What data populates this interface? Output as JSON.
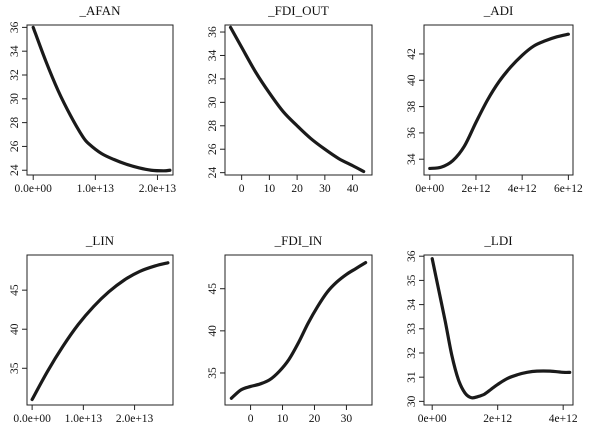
{
  "chart_data": [
    {
      "type": "line",
      "title": "_AFAN",
      "xlim": [
        -1000000000000.0,
        22500000000000.0
      ],
      "ylim": [
        23.6,
        36.2
      ],
      "xticks": [
        {
          "v": 0,
          "label": "0.0e+00"
        },
        {
          "v": 10000000000000.0,
          "label": "1.0e+13"
        },
        {
          "v": 20000000000000.0,
          "label": "2.0e+13"
        }
      ],
      "yticks": [
        {
          "v": 24,
          "label": "24"
        },
        {
          "v": 26,
          "label": "26"
        },
        {
          "v": 28,
          "label": "28"
        },
        {
          "v": 30,
          "label": "30"
        },
        {
          "v": 32,
          "label": "32"
        },
        {
          "v": 34,
          "label": "34"
        },
        {
          "v": 36,
          "label": "36"
        }
      ],
      "series": [
        {
          "x": [
            0,
            2000000000000.0,
            4000000000000.0,
            6000000000000.0,
            8000000000000.0,
            9000000000000.0,
            11000000000000.0,
            13000000000000.0,
            15000000000000.0,
            17000000000000.0,
            19000000000000.0,
            21000000000000.0,
            22000000000000.0
          ],
          "y": [
            36.0,
            33.2,
            30.7,
            28.6,
            26.8,
            26.2,
            25.4,
            24.9,
            24.5,
            24.2,
            24.0,
            23.95,
            24.0
          ]
        }
      ]
    },
    {
      "type": "line",
      "title": "_FDI_OUT",
      "xlim": [
        -6,
        47
      ],
      "ylim": [
        23.8,
        36.6
      ],
      "xticks": [
        {
          "v": 0,
          "label": "0"
        },
        {
          "v": 10,
          "label": "10"
        },
        {
          "v": 20,
          "label": "20"
        },
        {
          "v": 30,
          "label": "30"
        },
        {
          "v": 40,
          "label": "40"
        }
      ],
      "yticks": [
        {
          "v": 24,
          "label": "24"
        },
        {
          "v": 26,
          "label": "26"
        },
        {
          "v": 28,
          "label": "28"
        },
        {
          "v": 30,
          "label": "30"
        },
        {
          "v": 32,
          "label": "32"
        },
        {
          "v": 34,
          "label": "34"
        },
        {
          "v": 36,
          "label": "36"
        }
      ],
      "series": [
        {
          "x": [
            -4,
            0,
            5,
            10,
            15,
            20,
            25,
            30,
            35,
            40,
            44
          ],
          "y": [
            36.4,
            34.7,
            32.6,
            30.8,
            29.2,
            28.0,
            26.9,
            26.0,
            25.2,
            24.6,
            24.1
          ]
        }
      ]
    },
    {
      "type": "line",
      "title": "_ADI",
      "xlim": [
        -250000000000.0,
        6200000000000.0
      ],
      "ylim": [
        32.8,
        44.2
      ],
      "xticks": [
        {
          "v": 0,
          "label": "0e+00"
        },
        {
          "v": 2000000000000.0,
          "label": "2e+12"
        },
        {
          "v": 4000000000000.0,
          "label": "4e+12"
        },
        {
          "v": 6000000000000.0,
          "label": "6e+12"
        }
      ],
      "yticks": [
        {
          "v": 34,
          "label": "34"
        },
        {
          "v": 36,
          "label": "36"
        },
        {
          "v": 38,
          "label": "38"
        },
        {
          "v": 40,
          "label": "40"
        },
        {
          "v": 42,
          "label": "42"
        }
      ],
      "series": [
        {
          "x": [
            0,
            500000000000.0,
            1000000000000.0,
            1500000000000.0,
            2000000000000.0,
            2500000000000.0,
            3000000000000.0,
            3500000000000.0,
            4000000000000.0,
            4500000000000.0,
            5000000000000.0,
            5500000000000.0,
            6000000000000.0
          ],
          "y": [
            33.3,
            33.4,
            33.9,
            35.0,
            36.8,
            38.5,
            39.9,
            41.0,
            41.9,
            42.6,
            43.0,
            43.3,
            43.5
          ]
        }
      ]
    },
    {
      "type": "line",
      "title": "_LIN",
      "xlim": [
        -1000000000000.0,
        27500000000000.0
      ],
      "ylim": [
        30.3,
        49.5
      ],
      "xticks": [
        {
          "v": 0,
          "label": "0.0e+00"
        },
        {
          "v": 10000000000000.0,
          "label": "1.0e+13"
        },
        {
          "v": 20000000000000.0,
          "label": "2.0e+13"
        }
      ],
      "yticks": [
        {
          "v": 35,
          "label": "35"
        },
        {
          "v": 40,
          "label": "40"
        },
        {
          "v": 45,
          "label": "45"
        }
      ],
      "series": [
        {
          "x": [
            0,
            3000000000000.0,
            6000000000000.0,
            9000000000000.0,
            12000000000000.0,
            15000000000000.0,
            18000000000000.0,
            21000000000000.0,
            24000000000000.0,
            26500000000000.0
          ],
          "y": [
            31.0,
            34.6,
            37.8,
            40.6,
            42.9,
            44.8,
            46.3,
            47.4,
            48.1,
            48.5
          ]
        }
      ]
    },
    {
      "type": "line",
      "title": "_FDI_IN",
      "xlim": [
        -8,
        38
      ],
      "ylim": [
        31.2,
        49.0
      ],
      "xticks": [
        {
          "v": 0,
          "label": "0"
        },
        {
          "v": 10,
          "label": "10"
        },
        {
          "v": 20,
          "label": "20"
        },
        {
          "v": 30,
          "label": "30"
        }
      ],
      "yticks": [
        {
          "v": 35,
          "label": "35"
        },
        {
          "v": 40,
          "label": "40"
        },
        {
          "v": 45,
          "label": "45"
        }
      ],
      "series": [
        {
          "x": [
            -6,
            -3,
            0,
            3,
            6,
            9,
            12,
            15,
            18,
            21,
            24,
            27,
            30,
            33,
            36
          ],
          "y": [
            32.0,
            33.0,
            33.4,
            33.7,
            34.2,
            35.2,
            36.6,
            38.6,
            40.9,
            42.9,
            44.6,
            45.8,
            46.7,
            47.4,
            48.1
          ]
        }
      ]
    },
    {
      "type": "line",
      "title": "_LDI",
      "xlim": [
        -250000000000.0,
        4300000000000.0
      ],
      "ylim": [
        29.85,
        36.05
      ],
      "xticks": [
        {
          "v": 0,
          "label": "0e+00"
        },
        {
          "v": 2000000000000.0,
          "label": "2e+12"
        },
        {
          "v": 4000000000000.0,
          "label": "4e+12"
        }
      ],
      "yticks": [
        {
          "v": 30,
          "label": "30"
        },
        {
          "v": 31,
          "label": "31"
        },
        {
          "v": 32,
          "label": "32"
        },
        {
          "v": 33,
          "label": "33"
        },
        {
          "v": 34,
          "label": "34"
        },
        {
          "v": 35,
          "label": "35"
        },
        {
          "v": 36,
          "label": "36"
        }
      ],
      "series": [
        {
          "x": [
            0,
            200000000000.0,
            400000000000.0,
            600000000000.0,
            800000000000.0,
            1000000000000.0,
            1200000000000.0,
            1400000000000.0,
            1600000000000.0,
            1800000000000.0,
            2000000000000.0,
            2300000000000.0,
            2600000000000.0,
            2900000000000.0,
            3200000000000.0,
            3600000000000.0,
            4000000000000.0,
            4200000000000.0
          ],
          "y": [
            35.9,
            34.6,
            33.3,
            31.9,
            30.9,
            30.35,
            30.15,
            30.2,
            30.3,
            30.5,
            30.7,
            30.95,
            31.1,
            31.2,
            31.25,
            31.25,
            31.2,
            31.2
          ]
        }
      ]
    }
  ]
}
